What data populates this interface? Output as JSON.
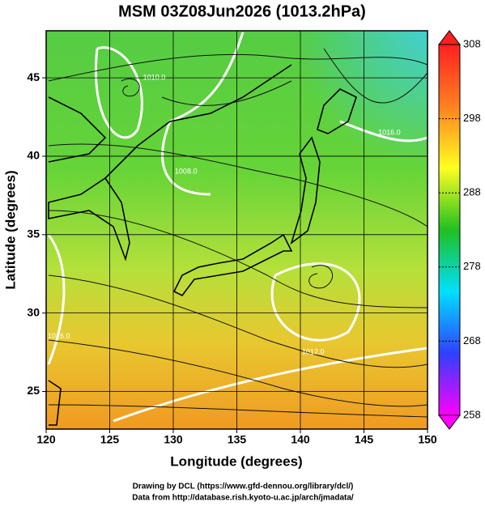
{
  "chart_data": {
    "type": "map",
    "title": "MSM 03Z08Jun2026 (1013.2hPa)",
    "x_label": "Longitude (degrees)",
    "y_label": "Latitude  (degrees)",
    "xlim": [
      120,
      150
    ],
    "ylim": [
      22.6,
      48
    ],
    "xticks": [
      120,
      125,
      130,
      135,
      140,
      145,
      150
    ],
    "yticks": [
      25,
      30,
      35,
      40,
      45
    ],
    "grid": true,
    "colorbar": {
      "lim": [
        258,
        308
      ],
      "ticks": [
        258,
        268,
        278,
        288,
        298,
        308
      ],
      "colors": [
        "#ff00ff",
        "#3040ff",
        "#00e0ff",
        "#20c020",
        "#ffff20",
        "#ff8020",
        "#ff2020"
      ]
    },
    "contour_labels": [
      {
        "text": "1010.0",
        "lon": 128.5,
        "lat": 45
      },
      {
        "text": "1008.0",
        "lon": 131,
        "lat": 39
      },
      {
        "text": "1016.0",
        "lon": 147,
        "lat": 41.5
      },
      {
        "text": "1012.0",
        "lon": 141,
        "lat": 27.5
      },
      {
        "text": "1016.0",
        "lon": 121,
        "lat": 28.5
      }
    ],
    "credits": [
      "Drawing by DCL (https://www.gfd-dennou.org/library/dcl/)",
      "Data from http://database.rish.kyoto-u.ac.jp/arch/jmadata/"
    ]
  }
}
